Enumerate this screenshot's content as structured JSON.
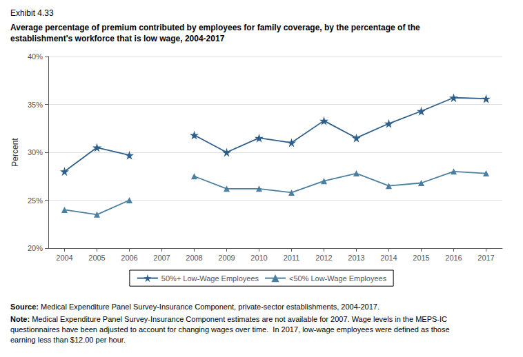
{
  "chart_data": {
    "type": "line",
    "title": "Exhibit 4.33",
    "subtitle": "Average percentage of premium contributed by employees for family coverage, by the percentage of the\nestablishment's workforce that is low wage, 2004-2017",
    "x": [
      2004,
      2005,
      2006,
      2007,
      2008,
      2009,
      2010,
      2011,
      2012,
      2013,
      2014,
      2015,
      2016,
      2017
    ],
    "series": [
      {
        "name": "50%+ Low-Wage Employees",
        "color": "#2E5F8A",
        "marker": "star",
        "values": [
          28.0,
          30.5,
          29.7,
          null,
          31.8,
          30.0,
          31.5,
          31.0,
          33.3,
          31.5,
          33.0,
          34.3,
          35.7,
          35.6
        ]
      },
      {
        "name": "<50% Low-Wage Employees",
        "color": "#4A7FA0",
        "marker": "triangle",
        "values": [
          24.0,
          23.5,
          25.0,
          null,
          27.5,
          26.2,
          26.2,
          25.8,
          27.0,
          27.8,
          26.5,
          26.8,
          28.0,
          27.8
        ]
      }
    ],
    "xlim": [
      2003.5,
      2017.5
    ],
    "xticks": [
      2004,
      2005,
      2006,
      2007,
      2008,
      2009,
      2010,
      2011,
      2012,
      2013,
      2014,
      2015,
      2016,
      2017
    ],
    "ylim": [
      20,
      40
    ],
    "yticks": [
      {
        "value": 20,
        "label": "20%"
      },
      {
        "value": 25,
        "label": "25%"
      },
      {
        "value": 30,
        "label": "30%"
      },
      {
        "value": 35,
        "label": "35%"
      },
      {
        "value": 40,
        "label": "40%"
      }
    ],
    "ylabel": "Percent",
    "grid": true,
    "legend": "bottom",
    "annotations": [
      "Source: Medical Expenditure Panel Survey-Insurance Component, private-sector establishments, 2004-2017.",
      "Note: Medical Expenditure Panel Survey-Insurance Component estimates are not available for 2007. Wage levels in the MEPS-IC\nquestionnaires have been adjusted to account for changing wages over time.  In 2017, low-wage employees were defined as those\nearning less than $12.00 per hour."
    ]
  }
}
